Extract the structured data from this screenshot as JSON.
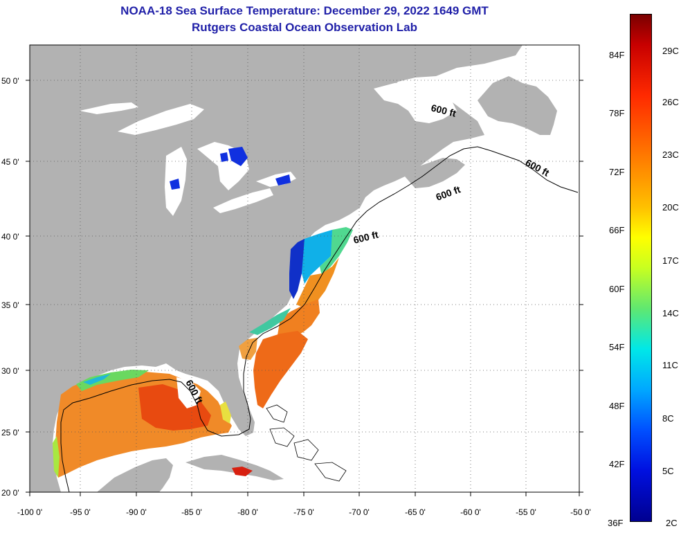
{
  "header": {
    "title_line1": "NOAA-18 Sea Surface Temperature:  December 29, 2022 1649 GMT",
    "title_line2": "Rutgers Coastal Ocean Observation Lab"
  },
  "map": {
    "lon_ticks": [
      "-100 0'",
      "-95 0'",
      "-90 0'",
      "-85 0'",
      "-80 0'",
      "-75 0'",
      "-70 0'",
      "-65 0'",
      "-60 0'",
      "-55 0'",
      "-50 0'"
    ],
    "lat_ticks": [
      "20 0'",
      "25 0'",
      "30 0'",
      "35 0'",
      "40 0'",
      "45 0'",
      "50 0'"
    ],
    "contour_labels": [
      "600 ft",
      "600 ft",
      "600 ft",
      "600 ft",
      "600 ft"
    ],
    "colors": {
      "land": "#b2b2b2",
      "cloud": "#ffffff",
      "lake_cold": "#1030e0"
    }
  },
  "colorbar": {
    "fahrenheit": [
      "84F",
      "78F",
      "72F",
      "66F",
      "60F",
      "54F",
      "48F",
      "42F",
      "36F"
    ],
    "celsius": [
      "29C",
      "26C",
      "23C",
      "20C",
      "17C",
      "14C",
      "11C",
      "8C",
      "5C",
      "2C"
    ]
  }
}
